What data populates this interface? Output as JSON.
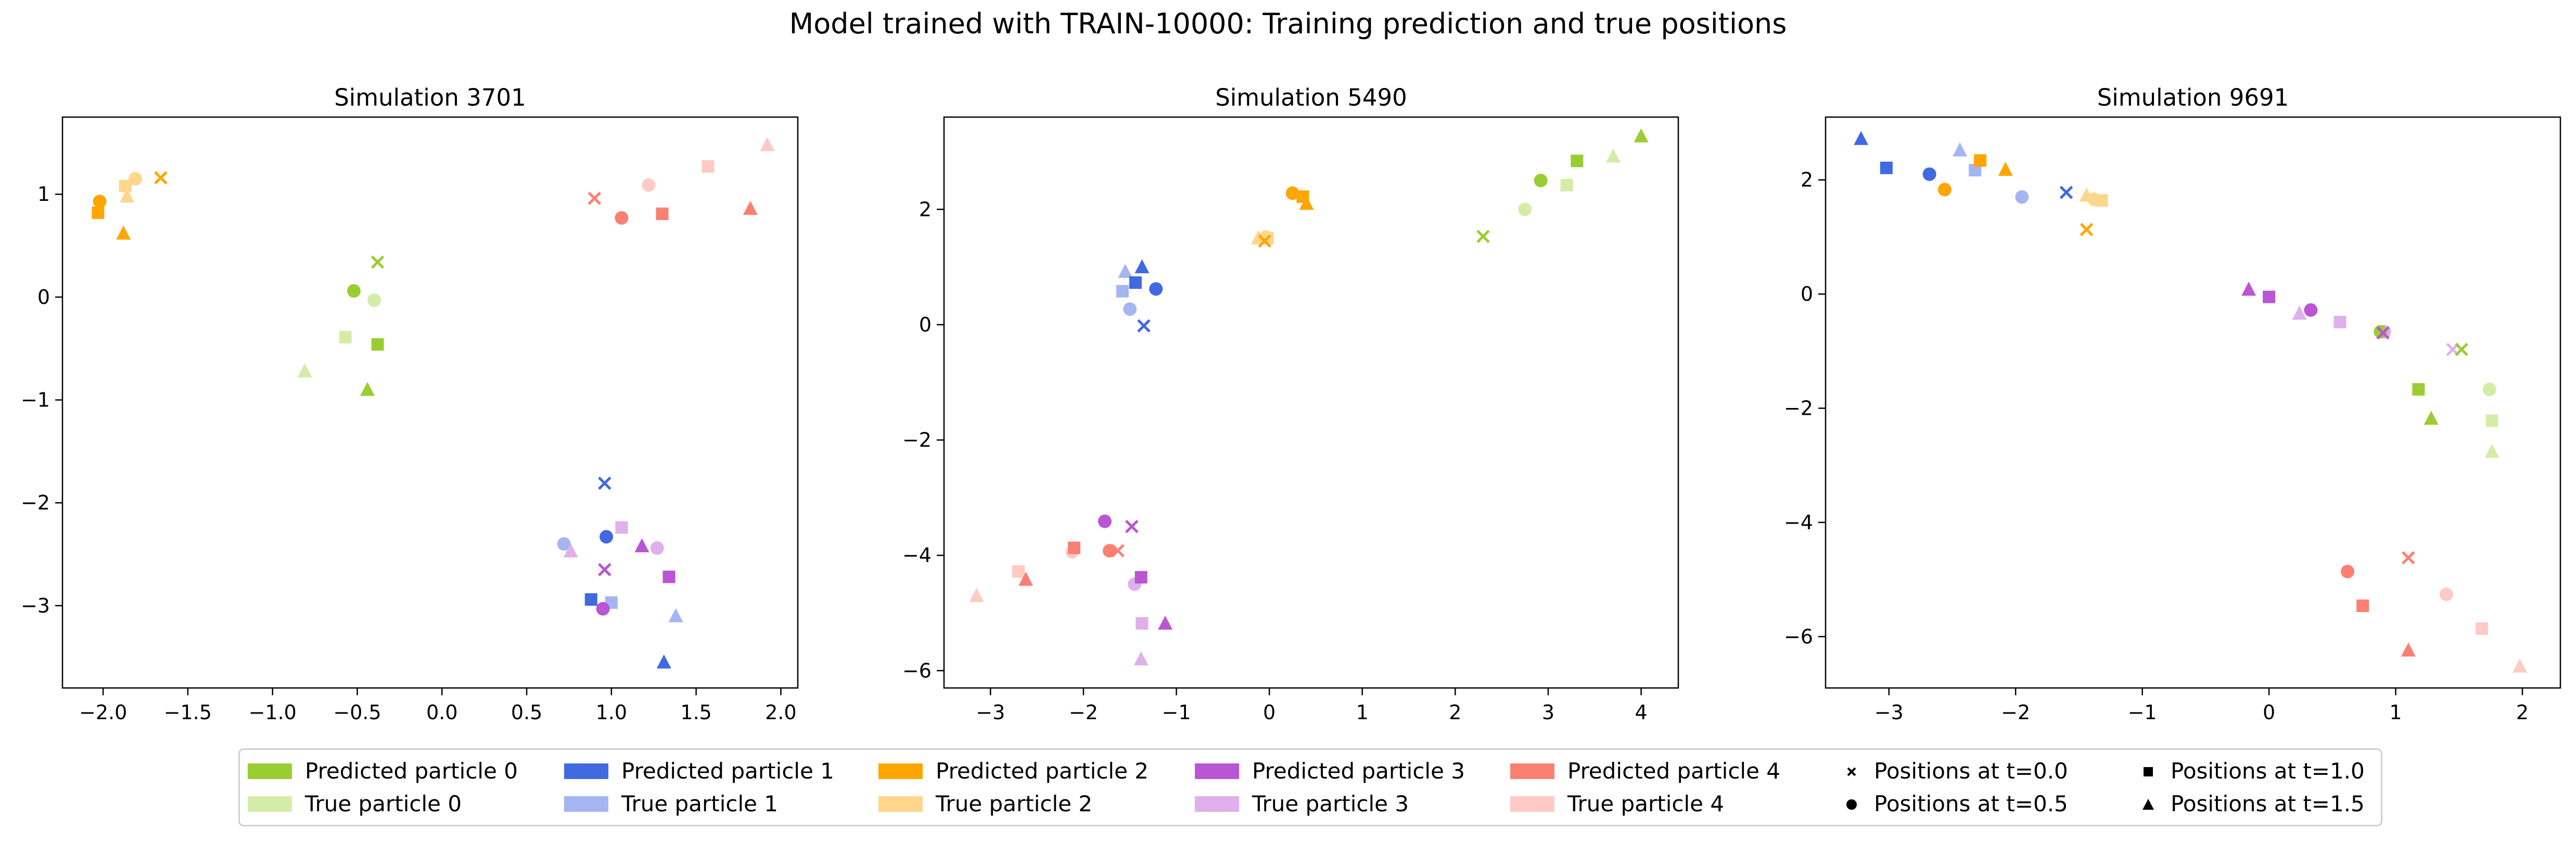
{
  "figure": {
    "title": "Model trained with TRAIN-10000: Training prediction and true positions"
  },
  "colors": {
    "pred": [
      "#9ACD32",
      "#4169E1",
      "#FFA500",
      "#BA55D3",
      "#FA8072"
    ],
    "true": [
      "#D4EDA6",
      "#A4B6F2",
      "#FFD68C",
      "#DFB0EB",
      "#FDCBC4"
    ]
  },
  "legend": {
    "entries": [
      {
        "label": "Predicted particle 0",
        "kind": "pred",
        "particle": 0
      },
      {
        "label": "True particle 0",
        "kind": "true",
        "particle": 0
      },
      {
        "label": "Predicted particle 1",
        "kind": "pred",
        "particle": 1
      },
      {
        "label": "True particle 1",
        "kind": "true",
        "particle": 1
      },
      {
        "label": "Predicted particle 2",
        "kind": "pred",
        "particle": 2
      },
      {
        "label": "True particle 2",
        "kind": "true",
        "particle": 2
      },
      {
        "label": "Predicted particle 3",
        "kind": "pred",
        "particle": 3
      },
      {
        "label": "True particle 3",
        "kind": "true",
        "particle": 3
      },
      {
        "label": "Predicted particle 4",
        "kind": "pred",
        "particle": 4
      },
      {
        "label": "True particle 4",
        "kind": "true",
        "particle": 4
      }
    ],
    "markers": [
      {
        "label": "Positions at t=0.0",
        "marker": "x"
      },
      {
        "label": "Positions at t=0.5",
        "marker": "circle"
      },
      {
        "label": "Positions at t=1.0",
        "marker": "square"
      },
      {
        "label": "Positions at t=1.5",
        "marker": "triangle"
      }
    ]
  },
  "chart_data": [
    {
      "type": "scatter",
      "title": "Simulation 3701",
      "xlim": [
        -2.24,
        2.1
      ],
      "ylim": [
        -3.8,
        1.75
      ],
      "xticks": [
        -2.0,
        -1.5,
        -1.0,
        -0.5,
        0.0,
        0.5,
        1.0,
        1.5,
        2.0
      ],
      "xtick_labels": [
        "−2.0",
        "−1.5",
        "−1.0",
        "−0.5",
        "0.0",
        "0.5",
        "1.0",
        "1.5",
        "2.0"
      ],
      "yticks": [
        -3,
        -2,
        -1,
        0,
        1
      ],
      "ytick_labels": [
        "−3",
        "−2",
        "−1",
        "0",
        "1"
      ],
      "points": [
        {
          "p": 0,
          "kind": "pred",
          "t": "0.0",
          "x": -0.38,
          "y": 0.34
        },
        {
          "p": 0,
          "kind": "pred",
          "t": "0.5",
          "x": -0.52,
          "y": 0.06
        },
        {
          "p": 0,
          "kind": "pred",
          "t": "1.0",
          "x": -0.38,
          "y": -0.46
        },
        {
          "p": 0,
          "kind": "pred",
          "t": "1.5",
          "x": -0.44,
          "y": -0.9
        },
        {
          "p": 0,
          "kind": "true",
          "t": "0.0",
          "x": -0.38,
          "y": 0.34
        },
        {
          "p": 0,
          "kind": "true",
          "t": "0.5",
          "x": -0.4,
          "y": -0.03
        },
        {
          "p": 0,
          "kind": "true",
          "t": "1.0",
          "x": -0.57,
          "y": -0.39
        },
        {
          "p": 0,
          "kind": "true",
          "t": "1.5",
          "x": -0.81,
          "y": -0.72
        },
        {
          "p": 1,
          "kind": "pred",
          "t": "0.0",
          "x": 0.96,
          "y": -1.81
        },
        {
          "p": 1,
          "kind": "pred",
          "t": "0.5",
          "x": 0.97,
          "y": -2.33
        },
        {
          "p": 1,
          "kind": "pred",
          "t": "1.0",
          "x": 0.88,
          "y": -2.94
        },
        {
          "p": 1,
          "kind": "pred",
          "t": "1.5",
          "x": 1.31,
          "y": -3.55
        },
        {
          "p": 1,
          "kind": "true",
          "t": "0.0",
          "x": 0.96,
          "y": -1.81
        },
        {
          "p": 1,
          "kind": "true",
          "t": "0.5",
          "x": 0.72,
          "y": -2.4
        },
        {
          "p": 1,
          "kind": "true",
          "t": "1.0",
          "x": 1.0,
          "y": -2.97
        },
        {
          "p": 1,
          "kind": "true",
          "t": "1.5",
          "x": 1.38,
          "y": -3.1
        },
        {
          "p": 2,
          "kind": "pred",
          "t": "0.0",
          "x": -1.66,
          "y": 1.16
        },
        {
          "p": 2,
          "kind": "pred",
          "t": "0.5",
          "x": -2.02,
          "y": 0.93
        },
        {
          "p": 2,
          "kind": "pred",
          "t": "1.0",
          "x": -2.03,
          "y": 0.82
        },
        {
          "p": 2,
          "kind": "pred",
          "t": "1.5",
          "x": -1.88,
          "y": 0.62
        },
        {
          "p": 2,
          "kind": "true",
          "t": "0.0",
          "x": -1.66,
          "y": 1.16
        },
        {
          "p": 2,
          "kind": "true",
          "t": "0.5",
          "x": -1.81,
          "y": 1.15
        },
        {
          "p": 2,
          "kind": "true",
          "t": "1.0",
          "x": -1.87,
          "y": 1.08
        },
        {
          "p": 2,
          "kind": "true",
          "t": "1.5",
          "x": -1.86,
          "y": 0.98
        },
        {
          "p": 3,
          "kind": "pred",
          "t": "0.0",
          "x": 0.96,
          "y": -2.65
        },
        {
          "p": 3,
          "kind": "pred",
          "t": "0.5",
          "x": 0.95,
          "y": -3.03
        },
        {
          "p": 3,
          "kind": "pred",
          "t": "1.0",
          "x": 1.34,
          "y": -2.72
        },
        {
          "p": 3,
          "kind": "pred",
          "t": "1.5",
          "x": 1.18,
          "y": -2.42
        },
        {
          "p": 3,
          "kind": "true",
          "t": "0.0",
          "x": 0.96,
          "y": -2.65
        },
        {
          "p": 3,
          "kind": "true",
          "t": "0.5",
          "x": 1.27,
          "y": -2.44
        },
        {
          "p": 3,
          "kind": "true",
          "t": "1.0",
          "x": 1.06,
          "y": -2.24
        },
        {
          "p": 3,
          "kind": "true",
          "t": "1.5",
          "x": 0.76,
          "y": -2.47
        },
        {
          "p": 4,
          "kind": "pred",
          "t": "0.0",
          "x": 0.9,
          "y": 0.96
        },
        {
          "p": 4,
          "kind": "pred",
          "t": "0.5",
          "x": 1.06,
          "y": 0.77
        },
        {
          "p": 4,
          "kind": "pred",
          "t": "1.0",
          "x": 1.3,
          "y": 0.81
        },
        {
          "p": 4,
          "kind": "pred",
          "t": "1.5",
          "x": 1.82,
          "y": 0.86
        },
        {
          "p": 4,
          "kind": "true",
          "t": "0.0",
          "x": 0.9,
          "y": 0.96
        },
        {
          "p": 4,
          "kind": "true",
          "t": "0.5",
          "x": 1.22,
          "y": 1.09
        },
        {
          "p": 4,
          "kind": "true",
          "t": "1.0",
          "x": 1.57,
          "y": 1.27
        },
        {
          "p": 4,
          "kind": "true",
          "t": "1.5",
          "x": 1.92,
          "y": 1.48
        }
      ]
    },
    {
      "type": "scatter",
      "title": "Simulation 5490",
      "xlim": [
        -3.5,
        4.4
      ],
      "ylim": [
        -6.3,
        3.6
      ],
      "xticks": [
        -3,
        -2,
        -1,
        0,
        1,
        2,
        3,
        4
      ],
      "xtick_labels": [
        "−3",
        "−2",
        "−1",
        "0",
        "1",
        "2",
        "3",
        "4"
      ],
      "yticks": [
        -6,
        -4,
        -2,
        0,
        2
      ],
      "ytick_labels": [
        "−6",
        "−4",
        "−2",
        "0",
        "2"
      ],
      "points": [
        {
          "p": 0,
          "kind": "pred",
          "t": "0.0",
          "x": 2.3,
          "y": 1.53
        },
        {
          "p": 0,
          "kind": "pred",
          "t": "0.5",
          "x": 2.92,
          "y": 2.5
        },
        {
          "p": 0,
          "kind": "pred",
          "t": "1.0",
          "x": 3.31,
          "y": 2.84
        },
        {
          "p": 0,
          "kind": "pred",
          "t": "1.5",
          "x": 4.0,
          "y": 3.27
        },
        {
          "p": 0,
          "kind": "true",
          "t": "0.0",
          "x": 2.3,
          "y": 1.53
        },
        {
          "p": 0,
          "kind": "true",
          "t": "0.5",
          "x": 2.75,
          "y": 2.0
        },
        {
          "p": 0,
          "kind": "true",
          "t": "1.0",
          "x": 3.2,
          "y": 2.42
        },
        {
          "p": 0,
          "kind": "true",
          "t": "1.5",
          "x": 3.7,
          "y": 2.92
        },
        {
          "p": 1,
          "kind": "pred",
          "t": "0.0",
          "x": -1.35,
          "y": -0.02
        },
        {
          "p": 1,
          "kind": "pred",
          "t": "0.5",
          "x": -1.22,
          "y": 0.62
        },
        {
          "p": 1,
          "kind": "pred",
          "t": "1.0",
          "x": -1.44,
          "y": 0.73
        },
        {
          "p": 1,
          "kind": "pred",
          "t": "1.5",
          "x": -1.37,
          "y": 1.0
        },
        {
          "p": 1,
          "kind": "true",
          "t": "0.0",
          "x": -1.35,
          "y": -0.02
        },
        {
          "p": 1,
          "kind": "true",
          "t": "0.5",
          "x": -1.5,
          "y": 0.27
        },
        {
          "p": 1,
          "kind": "true",
          "t": "1.0",
          "x": -1.58,
          "y": 0.58
        },
        {
          "p": 1,
          "kind": "true",
          "t": "1.5",
          "x": -1.55,
          "y": 0.92
        },
        {
          "p": 2,
          "kind": "pred",
          "t": "0.0",
          "x": -0.05,
          "y": 1.45
        },
        {
          "p": 2,
          "kind": "pred",
          "t": "0.5",
          "x": 0.25,
          "y": 2.28
        },
        {
          "p": 2,
          "kind": "pred",
          "t": "1.0",
          "x": 0.36,
          "y": 2.22
        },
        {
          "p": 2,
          "kind": "pred",
          "t": "1.5",
          "x": 0.4,
          "y": 2.1
        },
        {
          "p": 2,
          "kind": "true",
          "t": "0.0",
          "x": -0.05,
          "y": 1.45
        },
        {
          "p": 2,
          "kind": "true",
          "t": "0.5",
          "x": -0.04,
          "y": 1.52
        },
        {
          "p": 2,
          "kind": "true",
          "t": "1.0",
          "x": -0.02,
          "y": 1.5
        },
        {
          "p": 2,
          "kind": "true",
          "t": "1.5",
          "x": -0.12,
          "y": 1.5
        },
        {
          "p": 3,
          "kind": "pred",
          "t": "0.0",
          "x": -1.48,
          "y": -3.5
        },
        {
          "p": 3,
          "kind": "pred",
          "t": "0.5",
          "x": -1.77,
          "y": -3.41
        },
        {
          "p": 3,
          "kind": "pred",
          "t": "1.0",
          "x": -1.38,
          "y": -4.38
        },
        {
          "p": 3,
          "kind": "pred",
          "t": "1.5",
          "x": -1.12,
          "y": -5.18
        },
        {
          "p": 3,
          "kind": "true",
          "t": "0.0",
          "x": -1.48,
          "y": -3.5
        },
        {
          "p": 3,
          "kind": "true",
          "t": "0.5",
          "x": -1.45,
          "y": -4.5
        },
        {
          "p": 3,
          "kind": "true",
          "t": "1.0",
          "x": -1.37,
          "y": -5.18
        },
        {
          "p": 3,
          "kind": "true",
          "t": "1.5",
          "x": -1.38,
          "y": -5.8
        },
        {
          "p": 4,
          "kind": "pred",
          "t": "0.0",
          "x": -1.63,
          "y": -3.92
        },
        {
          "p": 4,
          "kind": "pred",
          "t": "0.5",
          "x": -1.72,
          "y": -3.92
        },
        {
          "p": 4,
          "kind": "pred",
          "t": "1.0",
          "x": -2.1,
          "y": -3.87
        },
        {
          "p": 4,
          "kind": "pred",
          "t": "1.5",
          "x": -2.62,
          "y": -4.42
        },
        {
          "p": 4,
          "kind": "true",
          "t": "0.0",
          "x": -1.63,
          "y": -3.92
        },
        {
          "p": 4,
          "kind": "true",
          "t": "0.5",
          "x": -2.12,
          "y": -3.94
        },
        {
          "p": 4,
          "kind": "true",
          "t": "1.0",
          "x": -2.7,
          "y": -4.28
        },
        {
          "p": 4,
          "kind": "true",
          "t": "1.5",
          "x": -3.15,
          "y": -4.7
        }
      ]
    },
    {
      "type": "scatter",
      "title": "Simulation 9691",
      "xlim": [
        -3.5,
        2.3
      ],
      "ylim": [
        -6.9,
        3.1
      ],
      "xticks": [
        -3,
        -2,
        -1,
        0,
        1,
        2
      ],
      "xtick_labels": [
        "−3",
        "−2",
        "−1",
        "0",
        "1",
        "2"
      ],
      "yticks": [
        -6,
        -4,
        -2,
        0,
        2
      ],
      "ytick_labels": [
        "−6",
        "−4",
        "−2",
        "0",
        "2"
      ],
      "points": [
        {
          "p": 0,
          "kind": "pred",
          "t": "0.0",
          "x": 1.52,
          "y": -0.97
        },
        {
          "p": 0,
          "kind": "pred",
          "t": "0.5",
          "x": 0.88,
          "y": -0.66
        },
        {
          "p": 0,
          "kind": "pred",
          "t": "1.0",
          "x": 1.18,
          "y": -1.67
        },
        {
          "p": 0,
          "kind": "pred",
          "t": "1.5",
          "x": 1.28,
          "y": -2.18
        },
        {
          "p": 0,
          "kind": "true",
          "t": "0.0",
          "x": 1.52,
          "y": -0.97
        },
        {
          "p": 0,
          "kind": "true",
          "t": "0.5",
          "x": 1.74,
          "y": -1.67
        },
        {
          "p": 0,
          "kind": "true",
          "t": "1.0",
          "x": 1.76,
          "y": -2.22
        },
        {
          "p": 0,
          "kind": "true",
          "t": "1.5",
          "x": 1.76,
          "y": -2.76
        },
        {
          "p": 1,
          "kind": "pred",
          "t": "0.0",
          "x": -1.6,
          "y": 1.78
        },
        {
          "p": 1,
          "kind": "pred",
          "t": "0.5",
          "x": -2.68,
          "y": 2.1
        },
        {
          "p": 1,
          "kind": "pred",
          "t": "1.0",
          "x": -3.02,
          "y": 2.21
        },
        {
          "p": 1,
          "kind": "pred",
          "t": "1.5",
          "x": -3.22,
          "y": 2.72
        },
        {
          "p": 1,
          "kind": "true",
          "t": "0.0",
          "x": -1.6,
          "y": 1.78
        },
        {
          "p": 1,
          "kind": "true",
          "t": "0.5",
          "x": -1.95,
          "y": 1.7
        },
        {
          "p": 1,
          "kind": "true",
          "t": "1.0",
          "x": -2.32,
          "y": 2.17
        },
        {
          "p": 1,
          "kind": "true",
          "t": "1.5",
          "x": -2.44,
          "y": 2.52
        },
        {
          "p": 2,
          "kind": "pred",
          "t": "0.0",
          "x": -1.44,
          "y": 1.13
        },
        {
          "p": 2,
          "kind": "pred",
          "t": "0.5",
          "x": -2.56,
          "y": 1.83
        },
        {
          "p": 2,
          "kind": "pred",
          "t": "1.0",
          "x": -2.28,
          "y": 2.34
        },
        {
          "p": 2,
          "kind": "pred",
          "t": "1.5",
          "x": -2.08,
          "y": 2.18
        },
        {
          "p": 2,
          "kind": "true",
          "t": "0.0",
          "x": -1.44,
          "y": 1.13
        },
        {
          "p": 2,
          "kind": "true",
          "t": "0.5",
          "x": -1.38,
          "y": 1.66
        },
        {
          "p": 2,
          "kind": "true",
          "t": "1.0",
          "x": -1.32,
          "y": 1.64
        },
        {
          "p": 2,
          "kind": "true",
          "t": "1.5",
          "x": -1.44,
          "y": 1.73
        },
        {
          "p": 3,
          "kind": "pred",
          "t": "0.0",
          "x": 0.9,
          "y": -0.68
        },
        {
          "p": 3,
          "kind": "pred",
          "t": "0.5",
          "x": 0.33,
          "y": -0.28
        },
        {
          "p": 3,
          "kind": "pred",
          "t": "1.0",
          "x": 0.0,
          "y": -0.05
        },
        {
          "p": 3,
          "kind": "pred",
          "t": "1.5",
          "x": -0.16,
          "y": 0.08
        },
        {
          "p": 3,
          "kind": "true",
          "t": "0.0",
          "x": 1.45,
          "y": -0.97
        },
        {
          "p": 3,
          "kind": "true",
          "t": "0.5",
          "x": 0.91,
          "y": -0.66
        },
        {
          "p": 3,
          "kind": "true",
          "t": "1.0",
          "x": 0.56,
          "y": -0.49
        },
        {
          "p": 3,
          "kind": "true",
          "t": "1.5",
          "x": 0.24,
          "y": -0.34
        },
        {
          "p": 4,
          "kind": "pred",
          "t": "0.0",
          "x": 1.1,
          "y": -4.62
        },
        {
          "p": 4,
          "kind": "pred",
          "t": "0.5",
          "x": 0.62,
          "y": -4.86
        },
        {
          "p": 4,
          "kind": "pred",
          "t": "1.0",
          "x": 0.74,
          "y": -5.46
        },
        {
          "p": 4,
          "kind": "pred",
          "t": "1.5",
          "x": 1.1,
          "y": -6.24
        },
        {
          "p": 4,
          "kind": "true",
          "t": "0.0",
          "x": 1.1,
          "y": -4.62
        },
        {
          "p": 4,
          "kind": "true",
          "t": "0.5",
          "x": 1.4,
          "y": -5.26
        },
        {
          "p": 4,
          "kind": "true",
          "t": "1.0",
          "x": 1.68,
          "y": -5.86
        },
        {
          "p": 4,
          "kind": "true",
          "t": "1.5",
          "x": 1.98,
          "y": -6.52
        }
      ]
    }
  ]
}
